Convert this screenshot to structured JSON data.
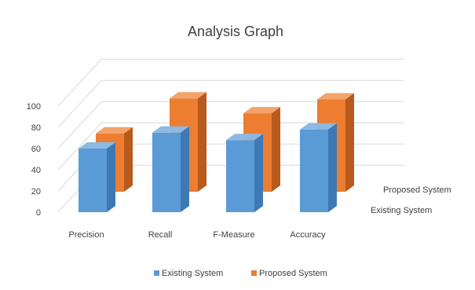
{
  "chart_data": {
    "type": "bar",
    "title": "Analysis Graph",
    "categories": [
      "Precision",
      "Recall",
      "F-Measure",
      "Accuracy"
    ],
    "series": [
      {
        "name": "Existing System",
        "values": [
          60,
          75,
          68,
          78
        ]
      },
      {
        "name": "Proposed System",
        "values": [
          55,
          88,
          74,
          87
        ]
      }
    ],
    "depth_labels": [
      "Proposed System",
      "Existing System"
    ],
    "legend": {
      "position": "bottom",
      "entries": [
        "Existing System",
        "Proposed System"
      ]
    },
    "y_ticks": [
      "0",
      "20",
      "40",
      "60",
      "80",
      "100"
    ],
    "ylim": [
      0,
      100
    ],
    "colors": {
      "existing_front": "#5b9bd5",
      "existing_side": "#3f79b5",
      "existing_top": "#8db9e3",
      "proposed_front": "#ed7d31",
      "proposed_side": "#b75a1c",
      "proposed_top": "#f3a36b",
      "grid": "#d9d9d9",
      "text": "#404040"
    },
    "grid": true
  }
}
